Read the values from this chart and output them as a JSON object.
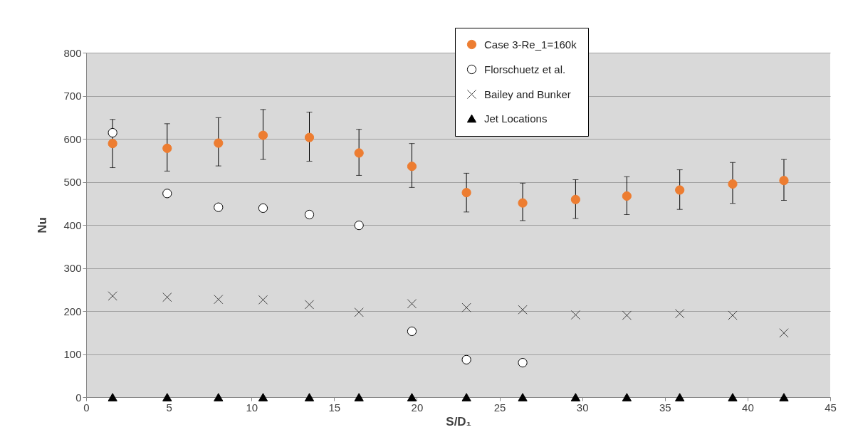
{
  "chart_data": {
    "type": "scatter",
    "xlabel": "S/D₁",
    "ylabel": "Nu",
    "xlim": [
      0,
      45
    ],
    "xticks": [
      0,
      5,
      10,
      15,
      20,
      25,
      30,
      35,
      40,
      45
    ],
    "ylim": [
      0,
      800
    ],
    "yticks": [
      0,
      100,
      200,
      300,
      400,
      500,
      600,
      700,
      800
    ],
    "grid": "y",
    "legend": "top right",
    "series": [
      {
        "name": "Case 3-Re_1=160k",
        "color": "#ed7d31",
        "marker": "circle",
        "x": [
          1.6,
          4.9,
          8.0,
          10.7,
          13.5,
          16.5,
          19.7,
          23.0,
          26.4,
          29.6,
          32.7,
          35.9,
          39.1,
          42.2
        ],
        "values": [
          589,
          578,
          590,
          608,
          603,
          567,
          536,
          475,
          451,
          459,
          467,
          481,
          495,
          503
        ],
        "errors": [
          [
            533,
            645
          ],
          [
            525,
            635
          ],
          [
            537,
            649
          ],
          [
            552,
            668
          ],
          [
            548,
            662
          ],
          [
            515,
            622
          ],
          [
            487,
            589
          ],
          [
            430,
            520
          ],
          [
            410,
            497
          ],
          [
            415,
            505
          ],
          [
            424,
            512
          ],
          [
            436,
            528
          ],
          [
            450,
            545
          ],
          [
            457,
            552
          ]
        ]
      },
      {
        "name": "Florschuetz et al.",
        "color": "#ffffff",
        "marker": "circle",
        "x": [
          1.6,
          4.9,
          8.0,
          10.7,
          13.5,
          16.5,
          19.7,
          23.0,
          26.4
        ],
        "values": [
          614,
          473,
          441,
          439,
          424,
          399,
          153,
          87,
          80
        ]
      },
      {
        "name": "Bailey and Bunker",
        "color": "#404040",
        "marker": "cross",
        "x": [
          1.6,
          4.9,
          8.0,
          10.7,
          13.5,
          16.5,
          19.7,
          23.0,
          26.4,
          29.6,
          32.7,
          35.9,
          39.1,
          42.2
        ],
        "values": [
          235,
          232,
          227,
          226,
          215,
          197,
          217,
          208,
          203,
          191,
          190,
          194,
          190,
          149
        ]
      },
      {
        "name": "Jet Locations",
        "color": "#000000",
        "marker": "triangle",
        "x": [
          1.6,
          4.9,
          8.0,
          10.7,
          13.5,
          16.5,
          19.7,
          23.0,
          26.4,
          29.6,
          32.7,
          35.9,
          39.1,
          42.2
        ],
        "values": [
          0,
          0,
          0,
          0,
          0,
          0,
          0,
          0,
          0,
          0,
          0,
          0,
          0,
          0
        ]
      }
    ]
  }
}
